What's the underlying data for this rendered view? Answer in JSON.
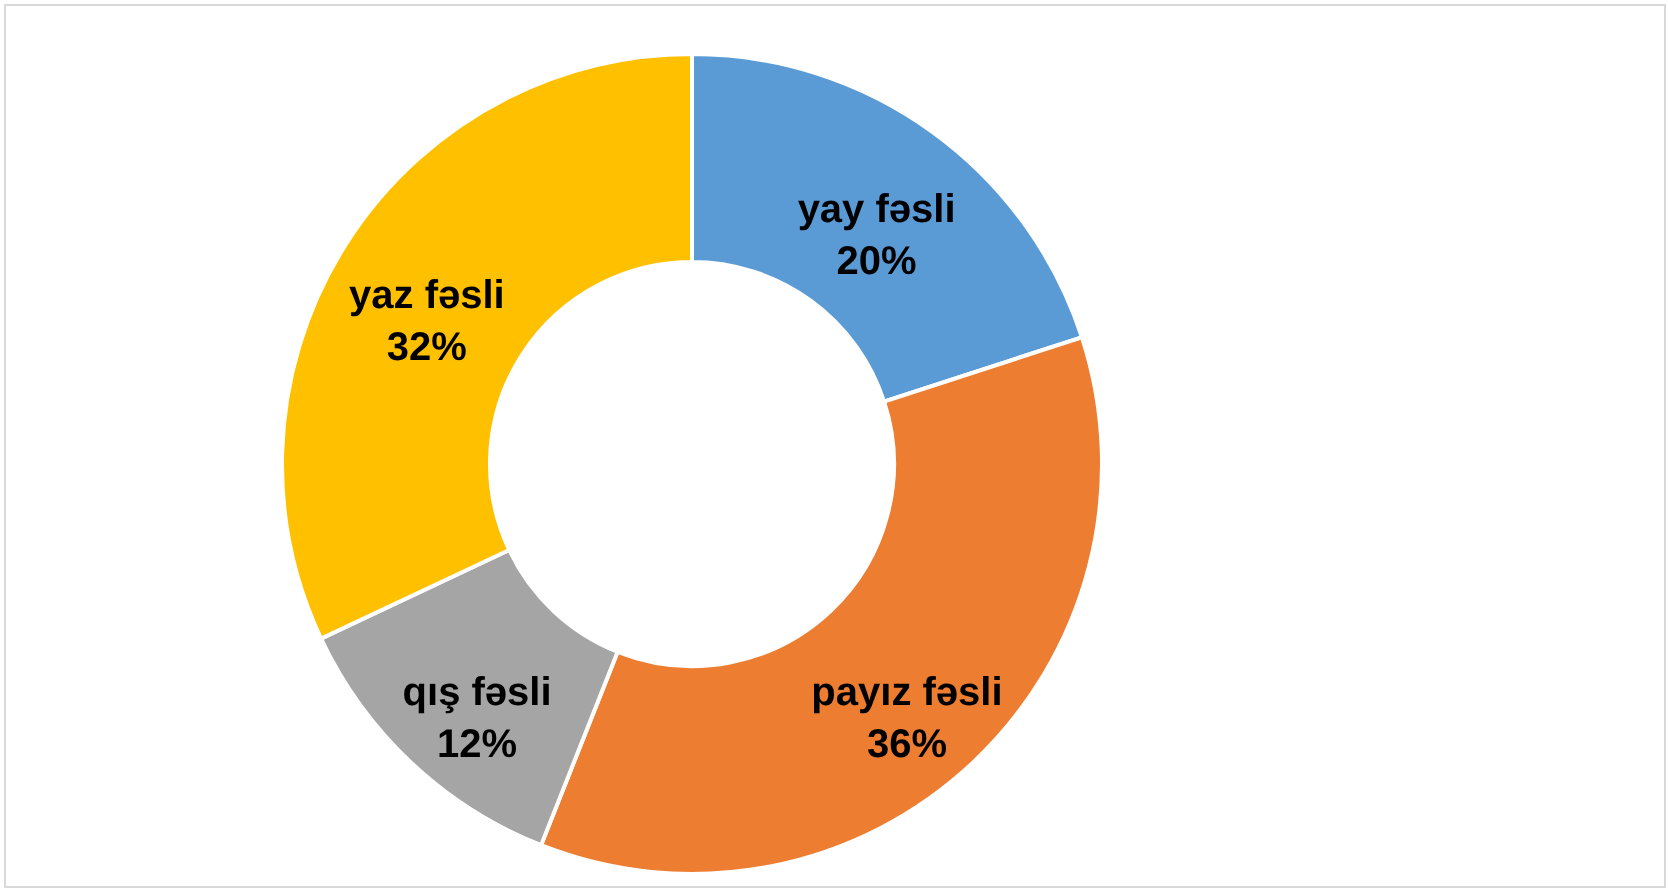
{
  "chart_data": {
    "type": "donut",
    "categories": [
      "yay fəsli",
      "payız fəsli",
      "qış fəsli",
      "yaz fəsli"
    ],
    "values": [
      20,
      36,
      12,
      32
    ],
    "colors": [
      "#5b9bd5",
      "#ed7d31",
      "#a5a5a5",
      "#ffc000"
    ],
    "value_labels": [
      "20%",
      "36%",
      "12%",
      "32%"
    ],
    "legend": false
  }
}
